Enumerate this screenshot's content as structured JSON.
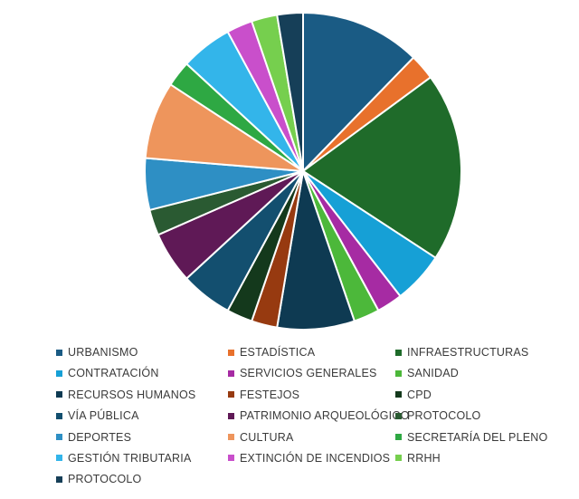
{
  "chart_data": {
    "type": "pie",
    "title": "",
    "legend_position": "bottom",
    "slices": [
      {
        "label": "URBANISMO",
        "value": 14,
        "color": "#1a5b84"
      },
      {
        "label": "ESTADÍSTICA",
        "value": 3,
        "color": "#e8712c"
      },
      {
        "label": "INFRAESTRUCTURAS",
        "value": 22,
        "color": "#1f6b2a"
      },
      {
        "label": "CONTRATACIÓN",
        "value": 6,
        "color": "#16a0d6"
      },
      {
        "label": "SERVICIOS GENERALES",
        "value": 3,
        "color": "#a62ba3"
      },
      {
        "label": "SANIDAD",
        "value": 3,
        "color": "#4cb83a"
      },
      {
        "label": "RECURSOS HUMANOS",
        "value": 9,
        "color": "#0e3a52"
      },
      {
        "label": "FESTEJOS",
        "value": 3,
        "color": "#973a10"
      },
      {
        "label": "CPD",
        "value": 3,
        "color": "#14391c"
      },
      {
        "label": "VÍA PÚBLICA",
        "value": 6,
        "color": "#134f6f"
      },
      {
        "label": "PATRIMONIO ARQUEOLÓGICO",
        "value": 6,
        "color": "#5f1956"
      },
      {
        "label": "PROTOCOLO",
        "value": 3,
        "color": "#2a5a32"
      },
      {
        "label": "DEPORTES",
        "value": 6,
        "color": "#2e8fc4"
      },
      {
        "label": "CULTURA",
        "value": 9,
        "color": "#ee955c"
      },
      {
        "label": "SECRETARÍA DEL PLENO",
        "value": 3,
        "color": "#2ea843"
      },
      {
        "label": "GESTIÓN TRIBUTARIA",
        "value": 6,
        "color": "#33b5ea"
      },
      {
        "label": "EXTINCIÓN DE INCENDIOS",
        "value": 3,
        "color": "#c94fcb"
      },
      {
        "label": "RRHH",
        "value": 3,
        "color": "#76cf4e"
      },
      {
        "label": "PROTOCOLO",
        "value": 3,
        "color": "#163f58"
      }
    ]
  }
}
